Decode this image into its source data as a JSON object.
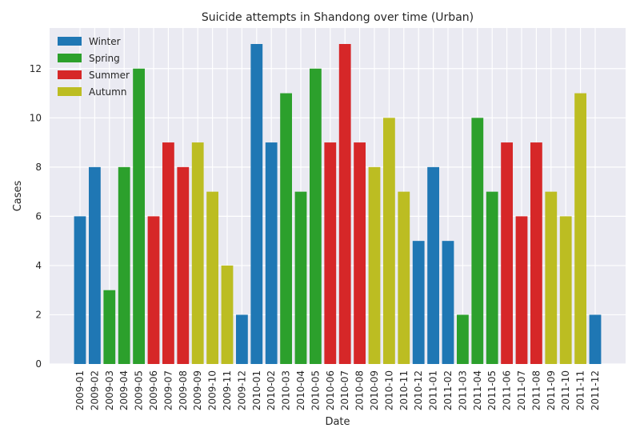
{
  "chart_data": {
    "type": "bar",
    "title": "Suicide attempts in Shandong over time (Urban)",
    "xlabel": "Date",
    "ylabel": "Cases",
    "ylim": [
      0,
      13.65
    ],
    "yticks": [
      0,
      2,
      4,
      6,
      8,
      10,
      12
    ],
    "grid": true,
    "legend_position": "top-left",
    "legend": [
      {
        "name": "Winter",
        "color": "#1f77b4"
      },
      {
        "name": "Spring",
        "color": "#2ca02c"
      },
      {
        "name": "Summer",
        "color": "#d62728"
      },
      {
        "name": "Autumn",
        "color": "#bcbd22"
      }
    ],
    "categories": [
      "2009-01",
      "2009-02",
      "2009-03",
      "2009-04",
      "2009-05",
      "2009-06",
      "2009-07",
      "2009-08",
      "2009-09",
      "2009-10",
      "2009-11",
      "2009-12",
      "2010-01",
      "2010-02",
      "2010-03",
      "2010-04",
      "2010-05",
      "2010-06",
      "2010-07",
      "2010-08",
      "2010-09",
      "2010-10",
      "2010-11",
      "2010-12",
      "2011-01",
      "2011-02",
      "2011-03",
      "2011-04",
      "2011-05",
      "2011-06",
      "2011-07",
      "2011-08",
      "2011-09",
      "2011-10",
      "2011-11",
      "2011-12"
    ],
    "values": [
      6,
      8,
      3,
      8,
      12,
      6,
      9,
      8,
      9,
      7,
      4,
      2,
      13,
      9,
      11,
      7,
      12,
      9,
      13,
      9,
      8,
      10,
      7,
      5,
      8,
      5,
      2,
      10,
      7,
      9,
      6,
      9,
      7,
      6,
      11,
      2
    ],
    "season": [
      "Winter",
      "Winter",
      "Spring",
      "Spring",
      "Spring",
      "Summer",
      "Summer",
      "Summer",
      "Autumn",
      "Autumn",
      "Autumn",
      "Winter",
      "Winter",
      "Winter",
      "Spring",
      "Spring",
      "Spring",
      "Summer",
      "Summer",
      "Summer",
      "Autumn",
      "Autumn",
      "Autumn",
      "Winter",
      "Winter",
      "Winter",
      "Spring",
      "Spring",
      "Spring",
      "Summer",
      "Summer",
      "Summer",
      "Autumn",
      "Autumn",
      "Autumn",
      "Winter"
    ]
  }
}
